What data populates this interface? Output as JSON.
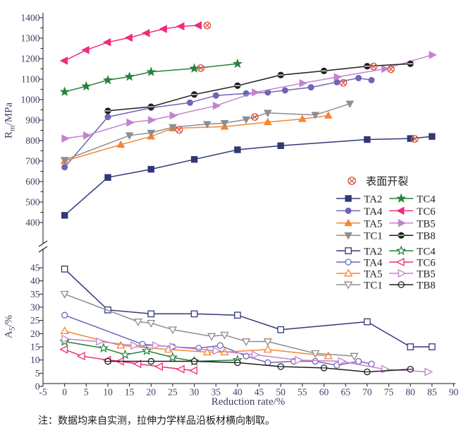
{
  "figure": {
    "footnote": "注：数据均来自实测，拉伸力学样品沿板材横向制取。",
    "x_label": "Reduction rate/%",
    "y_top": {
      "base": "R",
      "sub": "m",
      "rest": "/MPa"
    },
    "y_bottom": {
      "base": "A",
      "sub": "5",
      "rest": "/%"
    }
  },
  "legend": {
    "crack_label": "表面开裂"
  },
  "colors": {
    "crack": "#dd5a4b",
    "axis": "#1a1a1a",
    "tick_text": "#3a3f63",
    "legend_text": "#222222"
  },
  "chart_data": {
    "type": "line",
    "x_axis": {
      "label": "Reduction rate/%",
      "range": [
        -5,
        90
      ],
      "ticks": [
        -5,
        0,
        5,
        10,
        15,
        20,
        25,
        30,
        35,
        40,
        45,
        50,
        55,
        60,
        65,
        70,
        75,
        80,
        85,
        90
      ]
    },
    "crack_marker_label": "表面开裂",
    "panels": [
      {
        "id": "top",
        "y_label": "Rm/MPa",
        "y_range": [
          400,
          1400
        ],
        "y_ticks": [
          400,
          500,
          600,
          700,
          800,
          900,
          1000,
          1100,
          1200,
          1300,
          1400
        ],
        "marker_style": "filled",
        "series": [
          {
            "name": "TA2",
            "color": "#323876",
            "marker": "square",
            "points": [
              [
                0,
                435
              ],
              [
                10,
                620
              ],
              [
                20,
                660
              ],
              [
                30,
                708
              ],
              [
                40,
                755
              ],
              [
                50,
                775
              ],
              [
                70,
                805
              ],
              [
                80,
                810
              ],
              [
                85,
                820
              ]
            ],
            "crack": [
              81,
              808
            ]
          },
          {
            "name": "TA4",
            "color": "#6e65b8",
            "marker": "circle",
            "points": [
              [
                0,
                670
              ],
              [
                10,
                915
              ],
              [
                20,
                960
              ],
              [
                29,
                985
              ],
              [
                35,
                1020
              ],
              [
                42,
                1030
              ],
              [
                47,
                1035
              ],
              [
                51,
                1045
              ],
              [
                57,
                1060
              ],
              [
                63,
                1085
              ],
              [
                68,
                1105
              ],
              [
                71,
                1095
              ]
            ],
            "crack": [
              64.5,
              1082
            ]
          },
          {
            "name": "TA5",
            "color": "#f58634",
            "marker": "triangle-up",
            "points": [
              [
                0,
                700
              ],
              [
                13,
                780
              ],
              [
                20,
                820
              ],
              [
                25,
                860
              ],
              [
                37,
                868
              ],
              [
                47,
                890
              ],
              [
                55,
                905
              ],
              [
                61,
                922
              ]
            ],
            "crack": [
              26.5,
              852
            ]
          },
          {
            "name": "TC1",
            "color": "#8e8e91",
            "marker": "triangle-down",
            "points": [
              [
                0,
                705
              ],
              [
                15,
                825
              ],
              [
                20,
                838
              ],
              [
                25,
                865
              ],
              [
                33,
                880
              ],
              [
                37,
                885
              ],
              [
                42,
                903
              ],
              [
                47,
                935
              ],
              [
                58,
                925
              ],
              [
                66,
                980
              ]
            ],
            "crack": [
              44,
              915
            ]
          },
          {
            "name": "TC4",
            "color": "#27823c",
            "marker": "star",
            "points": [
              [
                0,
                1038
              ],
              [
                5,
                1065
              ],
              [
                10,
                1095
              ],
              [
                15,
                1112
              ],
              [
                20,
                1135
              ],
              [
                30,
                1152
              ],
              [
                40,
                1175
              ]
            ],
            "crack": [
              31.5,
              1154
            ]
          },
          {
            "name": "TC6",
            "color": "#ee2d7c",
            "marker": "triangle-left",
            "points": [
              [
                0,
                1190
              ],
              [
                5,
                1242
              ],
              [
                10,
                1280
              ],
              [
                15,
                1302
              ],
              [
                19,
                1325
              ],
              [
                23,
                1345
              ],
              [
                27,
                1358
              ],
              [
                31,
                1362
              ]
            ],
            "crack": [
              33,
              1362
            ]
          },
          {
            "name": "TB5",
            "color": "#c184cc",
            "marker": "triangle-right",
            "points": [
              [
                0,
                810
              ],
              [
                5,
                825
              ],
              [
                15,
                888
              ],
              [
                20,
                900
              ],
              [
                25,
                922
              ],
              [
                35,
                970
              ],
              [
                44,
                1035
              ],
              [
                55,
                1080
              ],
              [
                63,
                1110
              ],
              [
                74,
                1150
              ],
              [
                85,
                1218
              ]
            ],
            "crack": [
              75.5,
              1148
            ]
          },
          {
            "name": "TB8",
            "color": "#1f1f1f",
            "marker": "circle-bar",
            "points": [
              [
                10,
                945
              ],
              [
                20,
                965
              ],
              [
                30,
                1025
              ],
              [
                40,
                1068
              ],
              [
                50,
                1120
              ],
              [
                60,
                1140
              ],
              [
                70,
                1163
              ],
              [
                80,
                1175
              ]
            ],
            "crack": [
              71.5,
              1162
            ]
          }
        ]
      },
      {
        "id": "bottom",
        "y_label": "A5/%",
        "y_range": [
          0,
          47
        ],
        "y_ticks": [
          0,
          5,
          10,
          15,
          20,
          25,
          30,
          35,
          40,
          45
        ],
        "marker_style": "open",
        "series": [
          {
            "name": "TA2",
            "color": "#323876",
            "marker": "square",
            "points": [
              [
                0,
                44.5
              ],
              [
                10,
                29
              ],
              [
                20,
                27.5
              ],
              [
                30,
                27.5
              ],
              [
                40,
                27
              ],
              [
                50,
                21.5
              ],
              [
                70,
                24.5
              ],
              [
                80,
                15
              ],
              [
                85,
                15
              ]
            ],
            "crack": null
          },
          {
            "name": "TA4",
            "color": "#6e65b8",
            "marker": "circle",
            "points": [
              [
                0,
                27
              ],
              [
                18,
                16
              ],
              [
                25,
                15
              ],
              [
                31,
                14.5
              ],
              [
                36,
                15.5
              ],
              [
                42,
                11.5
              ],
              [
                47,
                9
              ],
              [
                53,
                9.5
              ],
              [
                58,
                9.5
              ],
              [
                63,
                8
              ],
              [
                68,
                9.5
              ],
              [
                71,
                8.5
              ]
            ],
            "crack": null
          },
          {
            "name": "TA5",
            "color": "#f58634",
            "marker": "triangle-up",
            "points": [
              [
                0,
                21
              ],
              [
                13,
                15.5
              ],
              [
                24,
                14
              ],
              [
                33,
                13
              ],
              [
                37,
                13
              ],
              [
                47,
                14
              ],
              [
                61,
                11.5
              ]
            ],
            "crack": null
          },
          {
            "name": "TC1",
            "color": "#8e8e91",
            "marker": "triangle-down",
            "points": [
              [
                0,
                35
              ],
              [
                17,
                24.5
              ],
              [
                20,
                24
              ],
              [
                25,
                21.5
              ],
              [
                34,
                19
              ],
              [
                37,
                19.5
              ],
              [
                42,
                17
              ],
              [
                47,
                17
              ],
              [
                58,
                12.5
              ],
              [
                67,
                11.5
              ]
            ],
            "crack": null
          },
          {
            "name": "TC4",
            "color": "#27823c",
            "marker": "star",
            "points": [
              [
                0,
                17
              ],
              [
                9,
                14.5
              ],
              [
                14,
                12
              ],
              [
                19,
                13.5
              ],
              [
                25,
                11
              ],
              [
                30,
                9.5
              ],
              [
                40,
                10
              ]
            ],
            "crack": null
          },
          {
            "name": "TC6",
            "color": "#ee2d7c",
            "marker": "triangle-left",
            "points": [
              [
                0,
                14
              ],
              [
                4,
                11.5
              ],
              [
                10,
                10
              ],
              [
                13,
                9.5
              ],
              [
                17,
                8.5
              ],
              [
                22,
                7.5
              ],
              [
                27,
                6.5
              ],
              [
                30,
                6
              ]
            ],
            "crack": null
          },
          {
            "name": "TB5",
            "color": "#c184cc",
            "marker": "triangle-right",
            "points": [
              [
                0,
                18
              ],
              [
                8,
                17
              ],
              [
                16,
                15.5
              ],
              [
                21,
                15.5
              ],
              [
                25,
                15
              ],
              [
                35,
                13.5
              ],
              [
                44,
                12
              ],
              [
                54,
                10
              ],
              [
                64,
                9.5
              ],
              [
                74,
                6.5
              ],
              [
                84,
                5.5
              ]
            ],
            "crack": null
          },
          {
            "name": "TB8",
            "color": "#1f1f1f",
            "marker": "circle-bar",
            "points": [
              [
                10,
                9.5
              ],
              [
                20,
                9.5
              ],
              [
                30,
                9.5
              ],
              [
                40,
                9
              ],
              [
                50,
                7.5
              ],
              [
                60,
                7
              ],
              [
                70,
                5.5
              ],
              [
                80,
                6.5
              ]
            ],
            "crack": null
          }
        ]
      }
    ]
  }
}
